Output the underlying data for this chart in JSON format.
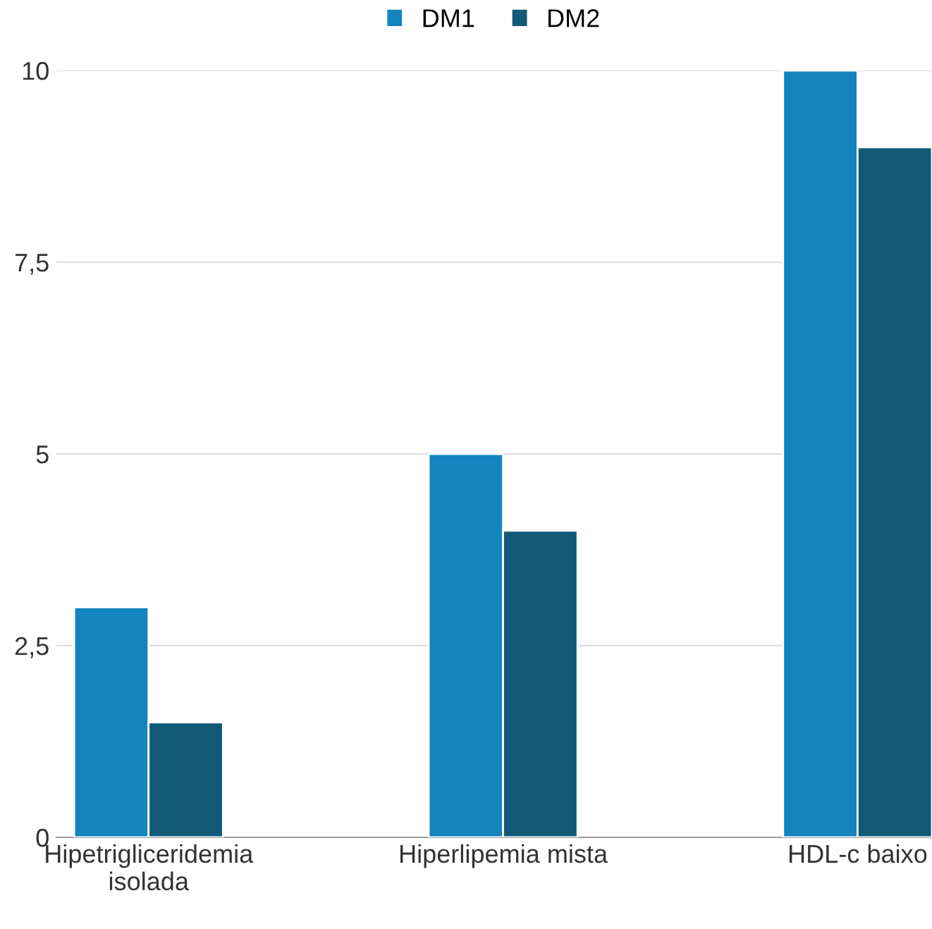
{
  "chart_data": {
    "type": "bar",
    "categories": [
      "Hipetrigliceridemia\nisolada",
      "Hiperlipemia mista",
      "HDL-c baixo"
    ],
    "series": [
      {
        "name": "DM1",
        "color": "#1384bd",
        "values": [
          3,
          5,
          10
        ]
      },
      {
        "name": "DM2",
        "color": "#125a78",
        "values": [
          1.5,
          4,
          9
        ]
      }
    ],
    "ylim": [
      0,
      10
    ],
    "yticks": [
      0,
      {
        "value": 2.5,
        "label": "2,5"
      },
      5,
      {
        "value": 7.5,
        "label": "7,5"
      },
      10
    ],
    "grid": "y",
    "legend": "top"
  }
}
